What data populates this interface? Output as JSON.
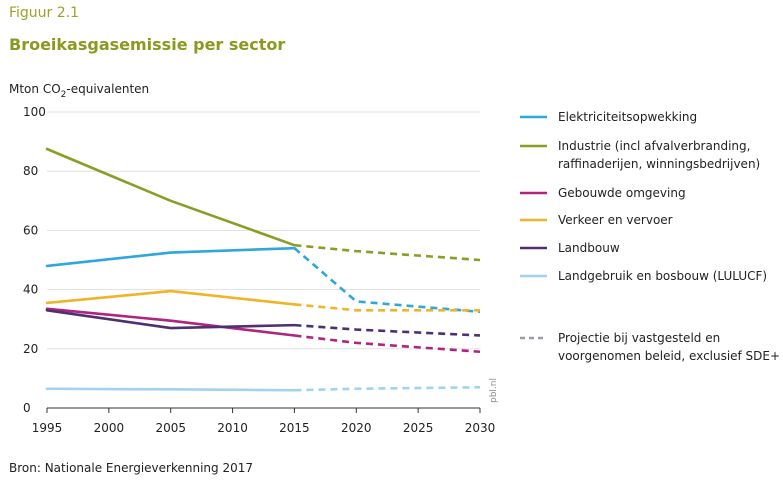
{
  "figure": {
    "label": "Figuur 2.1",
    "title": "Broeikasgasemissie per sector",
    "source": "Bron: Nationale Energieverkenning 2017",
    "watermark": "pbl.nl"
  },
  "chart_data": {
    "type": "line",
    "ylabel_main": "Mton CO",
    "ylabel_sub": "2",
    "ylabel_tail": "-equivalenten",
    "xlabel": "",
    "xlim": [
      1995,
      2030
    ],
    "ylim": [
      0,
      100
    ],
    "x_ticks": [
      "1995",
      "2000",
      "2005",
      "2010",
      "2015",
      "2020",
      "2025",
      "2030"
    ],
    "y_ticks": [
      "0",
      "20",
      "40",
      "60",
      "80",
      "100"
    ],
    "grid": "horizontal",
    "legend_position": "right",
    "series": [
      {
        "name": "Elektriciteitsopwekking",
        "color": "#2ea6de",
        "x": [
          1995,
          2005,
          2015
        ],
        "y": [
          48,
          52.5,
          54
        ],
        "proj_x": [
          2015,
          2020,
          2030
        ],
        "proj_y": [
          54,
          36,
          32.5
        ]
      },
      {
        "name": "Industrie (incl afvalverbranding,",
        "name_line2": "raffinaderijen, winningsbedrijven)",
        "color": "#8d9c24",
        "x": [
          1995,
          2005,
          2015
        ],
        "y": [
          87.5,
          70,
          55
        ],
        "proj_x": [
          2015,
          2020,
          2030
        ],
        "proj_y": [
          55,
          53,
          50
        ]
      },
      {
        "name": "Gebouwde omgeving",
        "color": "#b02480",
        "x": [
          1995,
          2005,
          2015
        ],
        "y": [
          33.5,
          29.5,
          24.5
        ],
        "proj_x": [
          2015,
          2020,
          2030
        ],
        "proj_y": [
          24.5,
          22,
          19
        ]
      },
      {
        "name": "Verkeer en vervoer",
        "color": "#f0b429",
        "x": [
          1995,
          2005,
          2015
        ],
        "y": [
          35.5,
          39.5,
          35
        ],
        "proj_x": [
          2015,
          2020,
          2030
        ],
        "proj_y": [
          35,
          33,
          33
        ]
      },
      {
        "name": "Landbouw",
        "color": "#4e3070",
        "x": [
          1995,
          2005,
          2015
        ],
        "y": [
          33,
          27,
          28
        ],
        "proj_x": [
          2015,
          2020,
          2030
        ],
        "proj_y": [
          28,
          26.5,
          24.5
        ]
      },
      {
        "name": "Landgebruik en bosbouw (LULUCF)",
        "color": "#9fd3ee",
        "x": [
          1995,
          2005,
          2015
        ],
        "y": [
          6.5,
          6.3,
          6
        ],
        "proj_x": [
          2015,
          2020,
          2030
        ],
        "proj_y": [
          6,
          6.5,
          7
        ]
      }
    ],
    "projection_legend": {
      "line1": "Projectie bij vastgesteld en",
      "line2": "voorgenomen beleid, exclusief SDE+",
      "color": "#9a9fa8"
    }
  }
}
